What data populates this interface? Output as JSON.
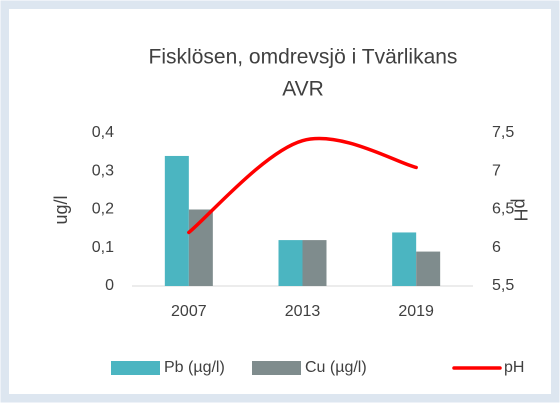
{
  "chart_data": {
    "type": "bar",
    "title": [
      "Fisklösen, omdrevsjö i Tvärlikans",
      "AVR"
    ],
    "categories": [
      "2007",
      "2013",
      "2019"
    ],
    "series": [
      {
        "name": "Pb (µg/l)",
        "color": "#4bb5c1",
        "values": [
          0.34,
          0.12,
          0.14
        ]
      },
      {
        "name": "Cu (µg/l)",
        "color": "#7f8c8d",
        "values": [
          0.2,
          0.12,
          0.09
        ]
      },
      {
        "name": "pH",
        "color": "#ff0000",
        "type": "line",
        "axis": "y2",
        "values": [
          6.2,
          7.4,
          7.05
        ]
      }
    ],
    "ylabel": "ug/l",
    "y2label": "pH",
    "ylim": [
      0,
      0.4
    ],
    "yticks": [
      0,
      {
        "value": 0.1,
        "label": "0,1"
      },
      {
        "value": 0.2,
        "label": "0,2"
      },
      {
        "value": 0.3,
        "label": "0,3"
      },
      {
        "value": 0.4,
        "label": "0,4"
      }
    ],
    "y2lim": [
      5.5,
      7.5
    ],
    "y2ticks": [
      {
        "value": 5.5,
        "label": "5,5"
      },
      6,
      {
        "value": 6.5,
        "label": "6,5"
      },
      7,
      {
        "value": 7.5,
        "label": "7,5"
      }
    ],
    "legend": "bottom",
    "grid": false
  }
}
